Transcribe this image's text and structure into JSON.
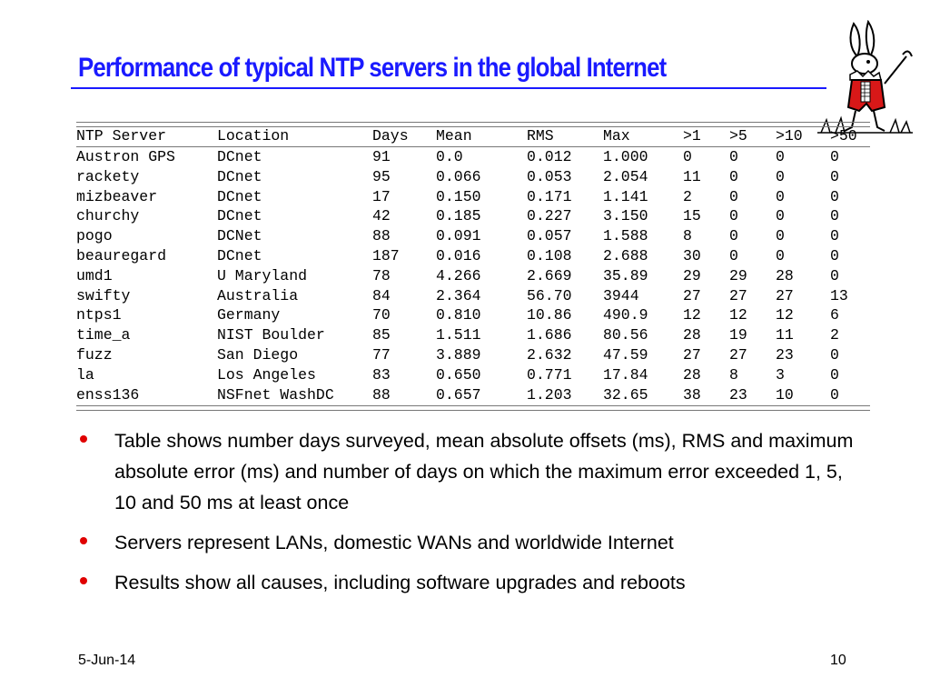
{
  "title": "Performance of typical NTP servers in the global Internet",
  "table": {
    "headers": [
      "NTP Server",
      "Location",
      "Days",
      "Mean",
      "RMS",
      "Max",
      ">1",
      ">5",
      ">10",
      ">50"
    ],
    "rows": [
      [
        "Austron GPS",
        "DCnet",
        "91",
        "0.0",
        "0.012",
        "1.000",
        "0",
        "0",
        "0",
        "0"
      ],
      [
        "rackety",
        "DCnet",
        "95",
        "0.066",
        "0.053",
        "2.054",
        "11",
        "0",
        "0",
        "0"
      ],
      [
        "mizbeaver",
        "DCnet",
        "17",
        "0.150",
        "0.171",
        "1.141",
        "2",
        "0",
        "0",
        "0"
      ],
      [
        "churchy",
        "DCnet",
        "42",
        "0.185",
        "0.227",
        "3.150",
        "15",
        "0",
        "0",
        "0"
      ],
      [
        "pogo",
        "DCNet",
        "88",
        "0.091",
        "0.057",
        "1.588",
        "8",
        "0",
        "0",
        "0"
      ],
      [
        "beauregard",
        "DCnet",
        "187",
        "0.016",
        "0.108",
        "2.688",
        "30",
        "0",
        "0",
        "0"
      ],
      [
        "umd1",
        "U Maryland",
        "78",
        "4.266",
        "2.669",
        "35.89",
        "29",
        "29",
        "28",
        "0"
      ],
      [
        "swifty",
        "Australia",
        "84",
        "2.364",
        "56.70",
        "3944",
        "27",
        "27",
        "27",
        "13"
      ],
      [
        "ntps1",
        "Germany",
        "70",
        "0.810",
        "10.86",
        "490.9",
        "12",
        "12",
        "12",
        "6"
      ],
      [
        "time_a",
        "NIST Boulder",
        "85",
        "1.511",
        "1.686",
        "80.56",
        "28",
        "19",
        "11",
        "2"
      ],
      [
        "fuzz",
        "San Diego",
        "77",
        "3.889",
        "2.632",
        "47.59",
        "27",
        "27",
        "23",
        "0"
      ],
      [
        "la",
        "Los Angeles",
        "83",
        "0.650",
        "0.771",
        "17.84",
        "28",
        "8",
        "3",
        "0"
      ],
      [
        "enss136",
        "NSFnet WashDC",
        "88",
        "0.657",
        "1.203",
        "32.65",
        "38",
        "23",
        "10",
        "0"
      ]
    ]
  },
  "bullets": [
    "Table shows number days surveyed, mean absolute offsets (ms), RMS and maximum absolute error (ms) and number of days on which the maximum error exceeded 1, 5, 10 and 50 ms at least once",
    "Servers represent LANs, domestic WANs and worldwide Internet",
    "Results show all causes, including software upgrades and reboots"
  ],
  "footer": {
    "date": "5-Jun-14",
    "page": "10"
  },
  "colors": {
    "title": "#1a1aff",
    "bullet": "#e00000"
  },
  "icons": {
    "illustration": "white-rabbit-icon"
  }
}
